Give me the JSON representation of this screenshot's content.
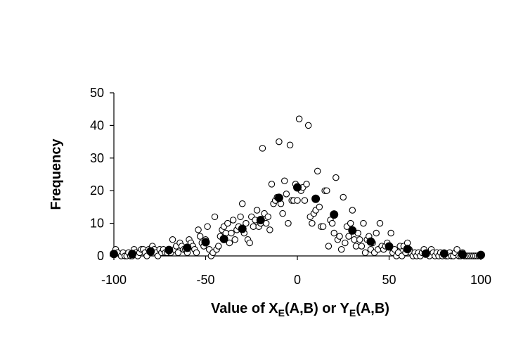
{
  "chart_data": {
    "type": "scatter",
    "title": "",
    "xlabel": {
      "pre": "Value of X",
      "sub1": "E",
      "mid": "(A,B) or Y",
      "sub2": "E",
      "post": "(A,B)"
    },
    "ylabel": "Frequency",
    "xlim": [
      -100,
      100
    ],
    "ylim": [
      0,
      50
    ],
    "xticks": [
      -100,
      -50,
      0,
      50,
      100
    ],
    "yticks": [
      0,
      10,
      20,
      30,
      40,
      50
    ],
    "grid": false,
    "legend": "none",
    "series": [
      {
        "marker": "open-circle",
        "color": "#000000",
        "points": [
          [
            -99,
            2
          ],
          [
            -98,
            1
          ],
          [
            -96,
            0
          ],
          [
            -95,
            1
          ],
          [
            -94,
            0
          ],
          [
            -93,
            0
          ],
          [
            -92,
            1
          ],
          [
            -91,
            0
          ],
          [
            -90,
            0
          ],
          [
            -89,
            2
          ],
          [
            -88,
            1
          ],
          [
            -87,
            0
          ],
          [
            -86,
            1
          ],
          [
            -85,
            2
          ],
          [
            -84,
            2
          ],
          [
            -83,
            1
          ],
          [
            -82,
            0
          ],
          [
            -81,
            2
          ],
          [
            -80,
            1
          ],
          [
            -79,
            3
          ],
          [
            -78,
            2
          ],
          [
            -77,
            1
          ],
          [
            -76,
            0
          ],
          [
            -75,
            2
          ],
          [
            -74,
            1
          ],
          [
            -73,
            2
          ],
          [
            -72,
            1
          ],
          [
            -71,
            1
          ],
          [
            -70,
            2
          ],
          [
            -69,
            1
          ],
          [
            -68,
            5
          ],
          [
            -67,
            2
          ],
          [
            -66,
            3
          ],
          [
            -65,
            1
          ],
          [
            -64,
            4
          ],
          [
            -63,
            3
          ],
          [
            -62,
            2
          ],
          [
            -61,
            2
          ],
          [
            -60,
            1
          ],
          [
            -59,
            5
          ],
          [
            -58,
            4
          ],
          [
            -57,
            3
          ],
          [
            -56,
            2
          ],
          [
            -55,
            1
          ],
          [
            -54,
            8
          ],
          [
            -53,
            6
          ],
          [
            -52,
            4
          ],
          [
            -51,
            3
          ],
          [
            -50,
            5
          ],
          [
            -49,
            9
          ],
          [
            -48,
            2
          ],
          [
            -47,
            0
          ],
          [
            -46,
            1
          ],
          [
            -45,
            12
          ],
          [
            -44,
            2
          ],
          [
            -43,
            3
          ],
          [
            -42,
            6
          ],
          [
            -41,
            8
          ],
          [
            -40,
            9
          ],
          [
            -39,
            7
          ],
          [
            -38,
            10
          ],
          [
            -37,
            4
          ],
          [
            -36,
            7
          ],
          [
            -35,
            11
          ],
          [
            -34,
            5
          ],
          [
            -33,
            8
          ],
          [
            -32,
            9
          ],
          [
            -31,
            12
          ],
          [
            -30,
            16
          ],
          [
            -29,
            7
          ],
          [
            -28,
            10
          ],
          [
            -27,
            5
          ],
          [
            -26,
            4
          ],
          [
            -25,
            12
          ],
          [
            -24,
            9
          ],
          [
            -23,
            11
          ],
          [
            -22,
            14
          ],
          [
            -21,
            9
          ],
          [
            -20,
            10
          ],
          [
            -19,
            33
          ],
          [
            -18,
            13
          ],
          [
            -17,
            10
          ],
          [
            -16,
            12
          ],
          [
            -15,
            8
          ],
          [
            -14,
            22
          ],
          [
            -13,
            16
          ],
          [
            -12,
            17
          ],
          [
            -11,
            18
          ],
          [
            -10,
            35
          ],
          [
            -9,
            16
          ],
          [
            -8,
            13
          ],
          [
            -7,
            23
          ],
          [
            -6,
            19
          ],
          [
            -5,
            10
          ],
          [
            -4,
            34
          ],
          [
            -3,
            17
          ],
          [
            -2,
            17
          ],
          [
            -1,
            22
          ],
          [
            0,
            17
          ],
          [
            1,
            42
          ],
          [
            2,
            20
          ],
          [
            3,
            21
          ],
          [
            4,
            17
          ],
          [
            5,
            22
          ],
          [
            6,
            40
          ],
          [
            7,
            12
          ],
          [
            8,
            10
          ],
          [
            9,
            13
          ],
          [
            10,
            14
          ],
          [
            11,
            26
          ],
          [
            12,
            15
          ],
          [
            13,
            9
          ],
          [
            14,
            9
          ],
          [
            15,
            20
          ],
          [
            16,
            20
          ],
          [
            17,
            3
          ],
          [
            18,
            11
          ],
          [
            19,
            10
          ],
          [
            20,
            7
          ],
          [
            21,
            24
          ],
          [
            22,
            5
          ],
          [
            23,
            6
          ],
          [
            24,
            2
          ],
          [
            25,
            18
          ],
          [
            26,
            4
          ],
          [
            27,
            9
          ],
          [
            28,
            6
          ],
          [
            29,
            10
          ],
          [
            30,
            14
          ],
          [
            31,
            5
          ],
          [
            32,
            3
          ],
          [
            33,
            7
          ],
          [
            34,
            5
          ],
          [
            35,
            3
          ],
          [
            36,
            10
          ],
          [
            37,
            1
          ],
          [
            38,
            5
          ],
          [
            39,
            6
          ],
          [
            40,
            2
          ],
          [
            41,
            4
          ],
          [
            42,
            1
          ],
          [
            43,
            7
          ],
          [
            44,
            2
          ],
          [
            45,
            10
          ],
          [
            46,
            3
          ],
          [
            47,
            2
          ],
          [
            48,
            3
          ],
          [
            49,
            4
          ],
          [
            50,
            3
          ],
          [
            51,
            7
          ],
          [
            52,
            1
          ],
          [
            53,
            2
          ],
          [
            54,
            0
          ],
          [
            55,
            1
          ],
          [
            56,
            3
          ],
          [
            57,
            0
          ],
          [
            58,
            3
          ],
          [
            59,
            1
          ],
          [
            60,
            4
          ],
          [
            61,
            2
          ],
          [
            62,
            1
          ],
          [
            63,
            0
          ],
          [
            64,
            1
          ],
          [
            65,
            0
          ],
          [
            66,
            1
          ],
          [
            67,
            0
          ],
          [
            68,
            1
          ],
          [
            69,
            2
          ],
          [
            70,
            1
          ],
          [
            71,
            1
          ],
          [
            72,
            0
          ],
          [
            73,
            2
          ],
          [
            74,
            1
          ],
          [
            75,
            0
          ],
          [
            76,
            1
          ],
          [
            77,
            0
          ],
          [
            78,
            1
          ],
          [
            79,
            0
          ],
          [
            80,
            1
          ],
          [
            81,
            0
          ],
          [
            82,
            0
          ],
          [
            83,
            1
          ],
          [
            84,
            0
          ],
          [
            85,
            0
          ],
          [
            86,
            1
          ],
          [
            87,
            2
          ],
          [
            88,
            0
          ],
          [
            89,
            0
          ],
          [
            90,
            1
          ],
          [
            91,
            0
          ],
          [
            92,
            0
          ],
          [
            93,
            0
          ],
          [
            94,
            0
          ],
          [
            95,
            0
          ],
          [
            96,
            0
          ],
          [
            97,
            0
          ],
          [
            98,
            0
          ],
          [
            99,
            0
          ]
        ]
      },
      {
        "marker": "filled-circle",
        "color": "#000000",
        "points": [
          [
            -100,
            0.6
          ],
          [
            -90,
            0.6
          ],
          [
            -80,
            1.4
          ],
          [
            -70,
            1.8
          ],
          [
            -60,
            2.5
          ],
          [
            -50,
            4.2
          ],
          [
            -40,
            5.2
          ],
          [
            -30,
            8.3
          ],
          [
            -20,
            11
          ],
          [
            -10,
            17.8
          ],
          [
            0,
            21
          ],
          [
            10,
            17.5
          ],
          [
            20,
            12.7
          ],
          [
            30,
            7.8
          ],
          [
            40,
            4.4
          ],
          [
            50,
            2.9
          ],
          [
            60,
            2.1
          ],
          [
            70,
            0.7
          ],
          [
            80,
            0.7
          ],
          [
            90,
            0.4
          ],
          [
            100,
            0.3
          ]
        ]
      }
    ]
  }
}
